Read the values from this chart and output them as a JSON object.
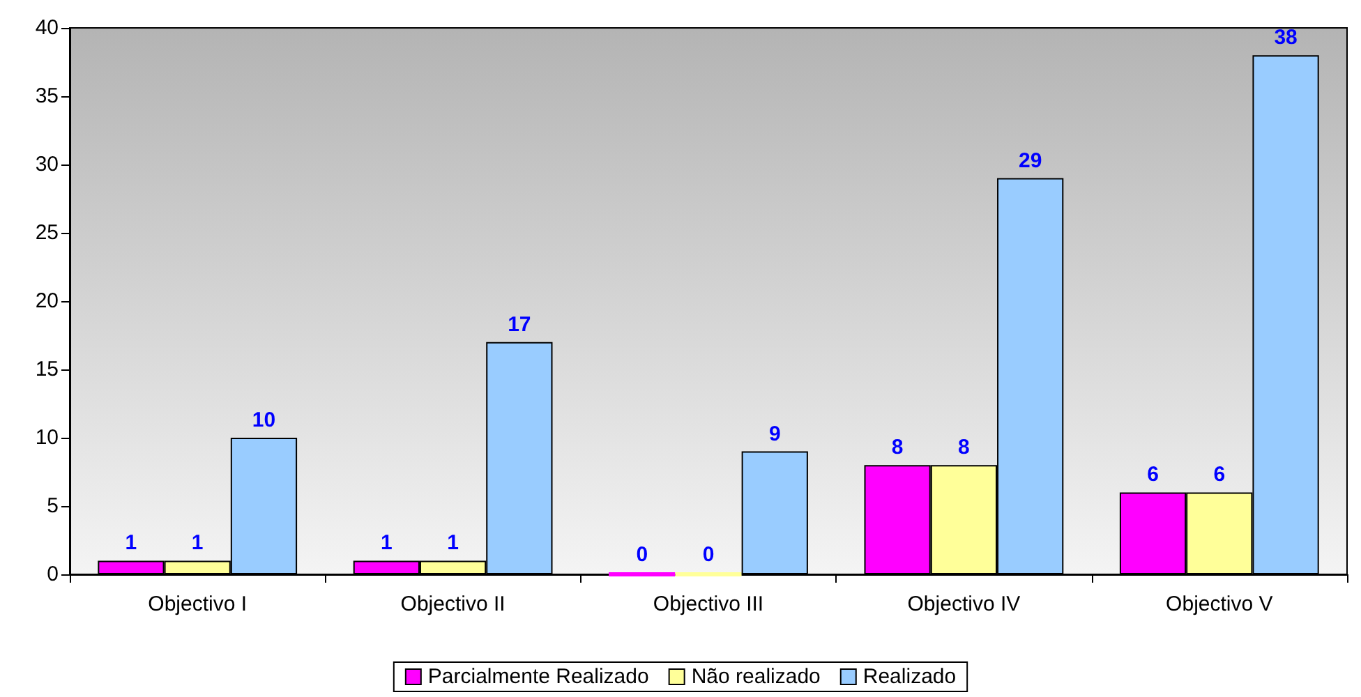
{
  "chart_data": {
    "type": "bar",
    "categories": [
      "Objectivo I",
      "Objectivo II",
      "Objectivo III",
      "Objectivo IV",
      "Objectivo V"
    ],
    "series": [
      {
        "name": "Parcialmente Realizado",
        "color": "#ff00ff",
        "values": [
          1,
          1,
          0,
          8,
          6
        ]
      },
      {
        "name": "Não realizado",
        "color": "#ffff99",
        "values": [
          1,
          1,
          0,
          8,
          6
        ]
      },
      {
        "name": "Realizado",
        "color": "#99ccff",
        "values": [
          10,
          17,
          9,
          29,
          38
        ]
      }
    ],
    "ylim": [
      0,
      40
    ],
    "yticks": [
      0,
      5,
      10,
      15,
      20,
      25,
      30,
      35,
      40
    ],
    "grid": false,
    "data_labels": true,
    "legend": "bottom"
  }
}
